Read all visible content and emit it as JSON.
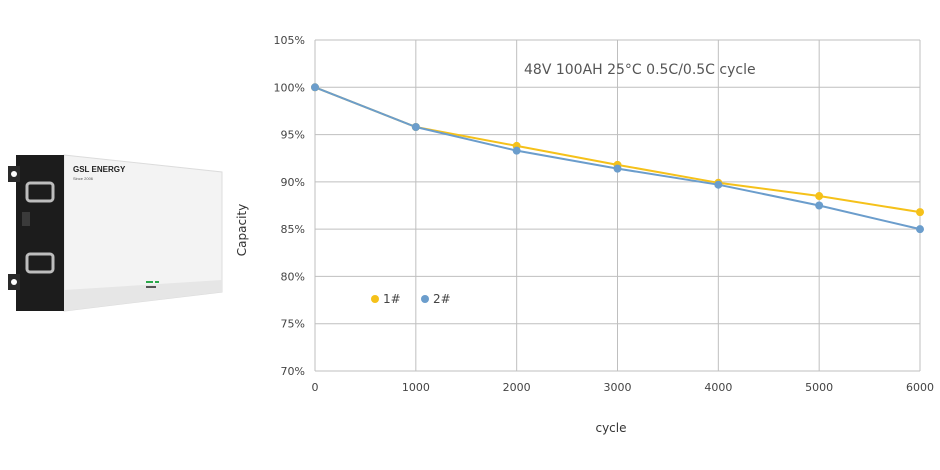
{
  "product": {
    "brand": "GSL ENERGY",
    "tagline": "Since 2006"
  },
  "colors": {
    "series_1": "#f5c11a",
    "series_2": "#6b9dcc",
    "grid": "#bfbfbf",
    "battery_body": "#f4f4f4",
    "battery_side": "#1c1c1c"
  },
  "chart_data": {
    "type": "line",
    "title": "48V 100AH 25°C 0.5C/0.5C cycle",
    "xlabel": "cycle",
    "ylabel": "Capacity",
    "xlim": [
      0,
      6000
    ],
    "ylim": [
      70,
      105
    ],
    "x_ticks": [
      "0",
      "1000",
      "2000",
      "3000",
      "4000",
      "5000",
      "6000"
    ],
    "y_ticks": [
      "70%",
      "75%",
      "80%",
      "85%",
      "90%",
      "95%",
      "100%",
      "105%"
    ],
    "grid": true,
    "legend_position": "bottom-left",
    "series": [
      {
        "name": "1#",
        "color": "#f5c11a",
        "x": [
          0,
          1000,
          2000,
          3000,
          4000,
          5000,
          6000
        ],
        "y": [
          100,
          95.8,
          93.8,
          91.8,
          89.9,
          88.5,
          86.8
        ]
      },
      {
        "name": "2#",
        "color": "#6b9dcc",
        "x": [
          0,
          1000,
          2000,
          3000,
          4000,
          5000,
          6000
        ],
        "y": [
          100,
          95.8,
          93.3,
          91.4,
          89.7,
          87.5,
          85.0
        ]
      }
    ]
  }
}
